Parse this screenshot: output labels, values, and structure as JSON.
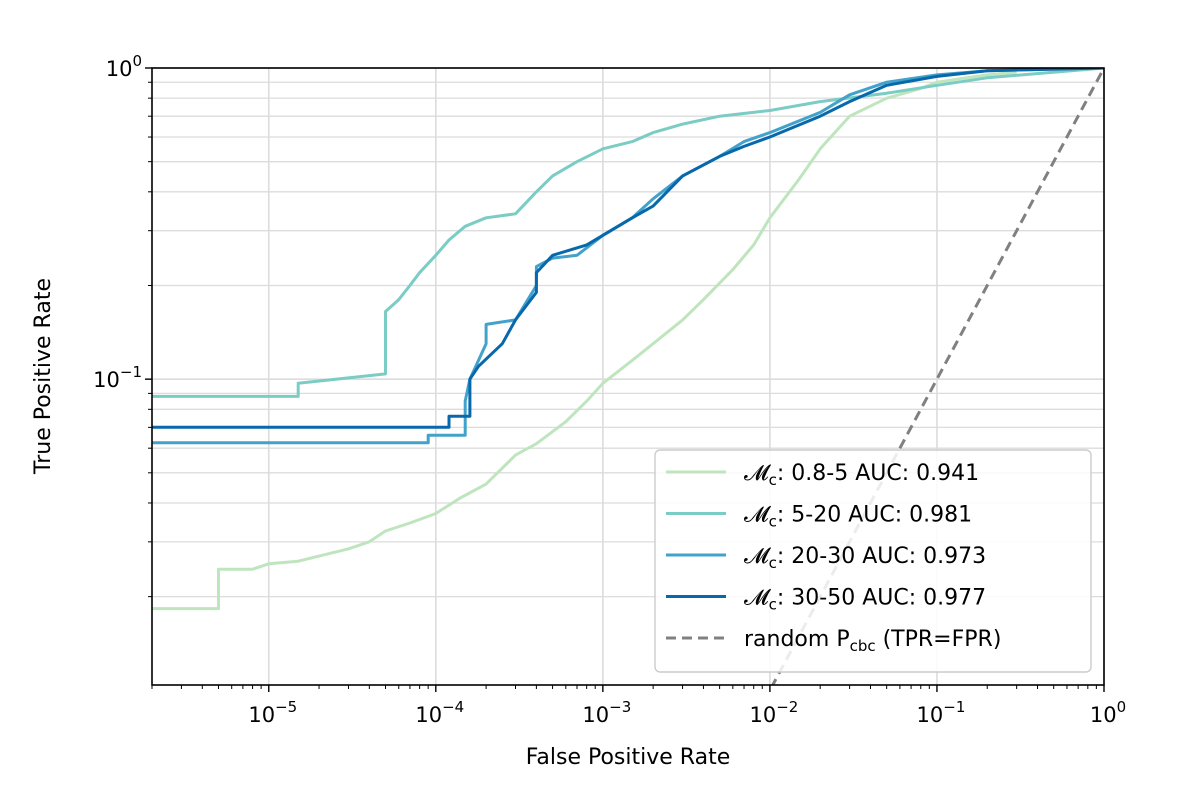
{
  "chart_data": {
    "type": "line",
    "xlabel": "False Positive Rate",
    "ylabel": "True Positive Rate",
    "x_scale": "log",
    "y_scale": "log",
    "xlim": [
      2e-06,
      1
    ],
    "ylim": [
      0.0104,
      1
    ],
    "grid": true,
    "legend_position": "lower-right",
    "x_ticks": [
      {
        "value": 1e-05,
        "base": "10",
        "exp": "−5"
      },
      {
        "value": 0.0001,
        "base": "10",
        "exp": "−4"
      },
      {
        "value": 0.001,
        "base": "10",
        "exp": "−3"
      },
      {
        "value": 0.01,
        "base": "10",
        "exp": "−2"
      },
      {
        "value": 0.1,
        "base": "10",
        "exp": "−1"
      },
      {
        "value": 1,
        "base": "10",
        "exp": "0"
      }
    ],
    "y_ticks": [
      {
        "value": 0.1,
        "base": "10",
        "exp": "−1"
      },
      {
        "value": 1,
        "base": "10",
        "exp": "0"
      }
    ],
    "series": [
      {
        "name_main": "𝓜",
        "name_sub": "c",
        "name_rest": ": 0.8-5  AUC: 0.941",
        "color": "#bfe5be",
        "x": [
          2e-06,
          5e-06,
          5e-06,
          8e-06,
          1e-05,
          1.5e-05,
          2e-05,
          3e-05,
          4e-05,
          5e-05,
          7e-05,
          0.0001,
          0.00014,
          0.0002,
          0.0003,
          0.0004,
          0.0006,
          0.0008,
          0.001,
          0.0015,
          0.002,
          0.003,
          0.004,
          0.006,
          0.008,
          0.01,
          0.015,
          0.02,
          0.03,
          0.05,
          0.08,
          0.1,
          0.15,
          0.2,
          0.3
        ],
        "y": [
          0.0183,
          0.0183,
          0.0245,
          0.0245,
          0.0255,
          0.026,
          0.027,
          0.0285,
          0.03,
          0.0325,
          0.0345,
          0.037,
          0.0415,
          0.046,
          0.057,
          0.062,
          0.073,
          0.085,
          0.097,
          0.115,
          0.13,
          0.155,
          0.18,
          0.225,
          0.27,
          0.33,
          0.44,
          0.55,
          0.7,
          0.8,
          0.86,
          0.9,
          0.93,
          0.95,
          0.97
        ]
      },
      {
        "name_main": "𝓜",
        "name_sub": "c",
        "name_rest": ": 5-20   AUC: 0.981",
        "color": "#7accc4",
        "x": [
          2e-06,
          1.5e-05,
          1.5e-05,
          5e-05,
          5e-05,
          6e-05,
          7e-05,
          8e-05,
          0.0001,
          0.00012,
          0.00015,
          0.0002,
          0.0003,
          0.0004,
          0.0005,
          0.0007,
          0.001,
          0.0015,
          0.002,
          0.003,
          0.005,
          0.01,
          0.02,
          0.05,
          0.1,
          0.2,
          1
        ],
        "y": [
          0.088,
          0.088,
          0.097,
          0.104,
          0.165,
          0.18,
          0.2,
          0.22,
          0.25,
          0.28,
          0.31,
          0.33,
          0.34,
          0.4,
          0.45,
          0.5,
          0.55,
          0.58,
          0.62,
          0.66,
          0.7,
          0.73,
          0.78,
          0.83,
          0.88,
          0.93,
          1.0
        ]
      },
      {
        "name_main": "𝓜",
        "name_sub": "c",
        "name_rest": ": 20-30  AUC: 0.973",
        "color": "#43a2ca",
        "x": [
          2e-06,
          9e-05,
          9e-05,
          0.00015,
          0.00015,
          0.00016,
          0.0002,
          0.0002,
          0.0003,
          0.0004,
          0.0004,
          0.0005,
          0.0007,
          0.001,
          0.0015,
          0.002,
          0.003,
          0.005,
          0.007,
          0.01,
          0.02,
          0.03,
          0.05,
          0.1,
          0.2,
          1
        ],
        "y": [
          0.0625,
          0.0625,
          0.066,
          0.066,
          0.085,
          0.1,
          0.13,
          0.15,
          0.155,
          0.2,
          0.23,
          0.245,
          0.25,
          0.29,
          0.33,
          0.38,
          0.45,
          0.52,
          0.58,
          0.62,
          0.72,
          0.82,
          0.9,
          0.95,
          0.98,
          1.0
        ]
      },
      {
        "name_main": "𝓜",
        "name_sub": "c",
        "name_rest": ": 30-50  AUC: 0.977",
        "color": "#0868ac",
        "x": [
          2e-06,
          0.00012,
          0.00012,
          0.00016,
          0.00016,
          0.00018,
          0.00025,
          0.0003,
          0.0004,
          0.0004,
          0.0005,
          0.0008,
          0.001,
          0.0015,
          0.002,
          0.003,
          0.005,
          0.007,
          0.01,
          0.02,
          0.03,
          0.05,
          0.1,
          0.2,
          1
        ],
        "y": [
          0.07,
          0.07,
          0.076,
          0.076,
          0.1,
          0.11,
          0.13,
          0.155,
          0.19,
          0.22,
          0.25,
          0.27,
          0.29,
          0.33,
          0.36,
          0.45,
          0.52,
          0.56,
          0.6,
          0.7,
          0.78,
          0.88,
          0.94,
          0.98,
          1.0
        ]
      }
    ],
    "reference_line": {
      "name_main": "random P",
      "name_sub": "cbc",
      "name_rest": " (TPR=FPR)",
      "color": "#808080",
      "x": [
        0.00604,
        1
      ],
      "y": [
        0.00604,
        1
      ]
    }
  }
}
